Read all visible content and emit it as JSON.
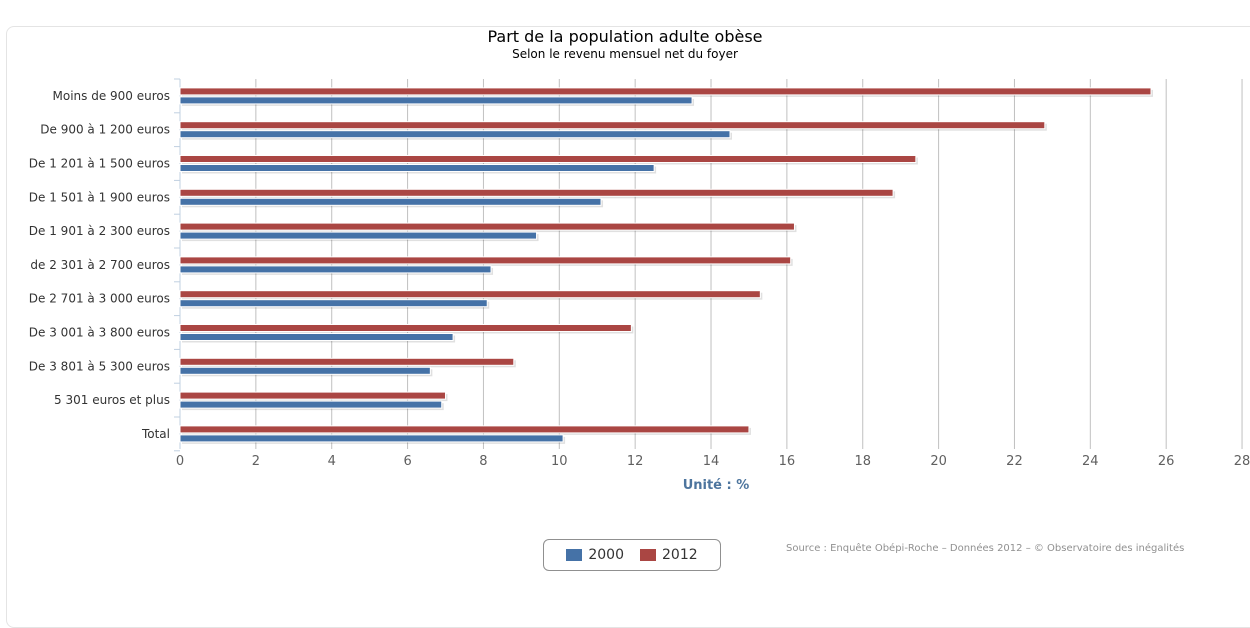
{
  "chart_data": {
    "type": "bar",
    "orientation": "horizontal",
    "title": "Part de la population adulte obèse",
    "subtitle": "Selon le revenu mensuel net du foyer",
    "xlabel": "Unité : %",
    "categories": [
      "Moins de 900 euros",
      "De 900 à 1 200 euros",
      "De 1 201 à 1 500 euros",
      "De 1 501 à 1 900 euros",
      "De 1 901 à 2 300 euros",
      "de 2 301 à 2 700 euros",
      "De 2 701 à 3 000 euros",
      "De 3 001 à 3 800 euros",
      "De 3 801 à 5 300 euros",
      "5 301 euros et plus",
      "Total"
    ],
    "series": [
      {
        "name": "2012",
        "color": "#aa4643",
        "values": [
          25.6,
          22.8,
          19.4,
          18.8,
          16.2,
          16.1,
          15.3,
          11.9,
          8.8,
          7.0,
          15.0
        ]
      },
      {
        "name": "2000",
        "color": "#4572a7",
        "values": [
          13.5,
          14.5,
          12.5,
          11.1,
          9.4,
          8.2,
          8.1,
          7.2,
          6.6,
          6.9,
          10.1
        ]
      }
    ],
    "xlim": [
      0,
      28
    ],
    "xticks": [
      "0",
      "2",
      "4",
      "6",
      "8",
      "10",
      "12",
      "14",
      "16",
      "18",
      "20",
      "22",
      "24",
      "26",
      "28"
    ],
    "grid": true,
    "legend": {
      "position": "bottom-center",
      "items": [
        {
          "name": "2000",
          "color": "#4572a7"
        },
        {
          "name": "2012",
          "color": "#aa4643"
        }
      ]
    },
    "source": "Source : Enquête Obépi-Roche – Données 2012 – © Observatoire des inégalités"
  }
}
